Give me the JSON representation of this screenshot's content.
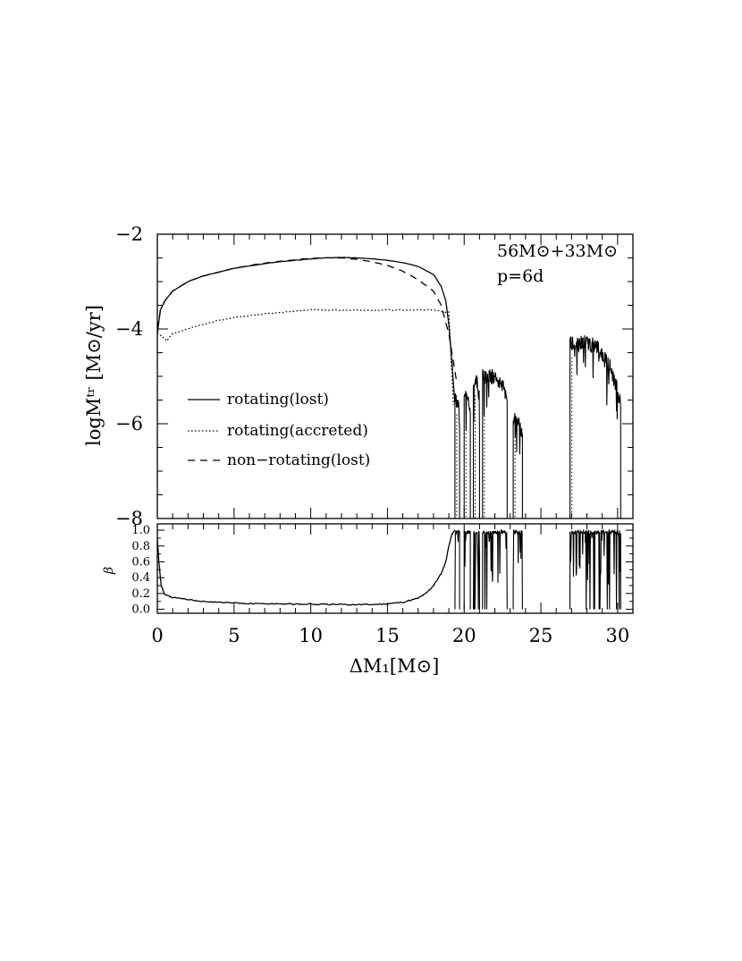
{
  "chart_data": [
    {
      "type": "line",
      "ylabel": "logMᵗʳ [M⊙/yr]",
      "ylim": [
        -8,
        -2
      ],
      "yticks": [
        -2,
        -4,
        -6,
        -8
      ],
      "xlim": [
        0,
        31
      ],
      "annotations": [
        "56M⊙+33M⊙",
        "p=6d"
      ],
      "legend": {
        "placement": "center-left",
        "entries": [
          "rotating(lost)",
          "rotating(accreted)",
          "non−rotating(lost)"
        ]
      },
      "series": [
        {
          "name": "rotating(lost)",
          "style": "solid",
          "x": [
            0,
            0.2,
            0.5,
            1,
            2,
            3,
            4,
            5,
            6,
            7,
            8,
            9,
            10,
            11,
            12,
            13,
            14,
            15,
            16,
            17,
            18,
            18.5,
            18.8,
            19.0,
            19.2,
            19.4
          ],
          "y": [
            -4.1,
            -3.6,
            -3.4,
            -3.2,
            -3.0,
            -2.88,
            -2.8,
            -2.72,
            -2.67,
            -2.62,
            -2.58,
            -2.55,
            -2.52,
            -2.5,
            -2.49,
            -2.5,
            -2.52,
            -2.55,
            -2.6,
            -2.68,
            -2.85,
            -3.1,
            -3.4,
            -3.9,
            -4.7,
            -5.6
          ]
        },
        {
          "name": "rotating(accreted)",
          "style": "dotted",
          "x": [
            0,
            0.3,
            0.6,
            1,
            2,
            3,
            4,
            5,
            6,
            7,
            8,
            9,
            10,
            11,
            12,
            13,
            14,
            15,
            16,
            17,
            18,
            19.0,
            19.3
          ],
          "y": [
            -4.1,
            -4.15,
            -4.25,
            -4.1,
            -4.0,
            -3.9,
            -3.82,
            -3.76,
            -3.72,
            -3.68,
            -3.65,
            -3.62,
            -3.6,
            -3.6,
            -3.6,
            -3.6,
            -3.6,
            -3.6,
            -3.6,
            -3.6,
            -3.6,
            -3.65,
            -5.6
          ]
        },
        {
          "name": "non−rotating(lost)",
          "style": "dashed",
          "x": [
            0,
            0.2,
            0.5,
            1,
            2,
            3,
            4,
            5,
            6,
            7,
            8,
            9,
            10,
            11,
            12,
            13,
            14,
            15,
            16,
            17,
            18,
            18.5,
            19.0,
            19.3,
            19.5
          ],
          "y": [
            -4.0,
            -3.6,
            -3.4,
            -3.2,
            -3.0,
            -2.88,
            -2.8,
            -2.72,
            -2.66,
            -2.61,
            -2.57,
            -2.54,
            -2.51,
            -2.5,
            -2.5,
            -2.53,
            -2.58,
            -2.66,
            -2.78,
            -2.96,
            -3.2,
            -3.5,
            -4.1,
            -4.7,
            -5.1
          ]
        }
      ]
    },
    {
      "type": "line",
      "ylabel": "β",
      "xlabel": "ΔM₁[M⊙]",
      "ylim": [
        -0.05,
        1.08
      ],
      "yticks": [
        0.0,
        0.2,
        0.4,
        0.6,
        0.8,
        1.0
      ],
      "ytick_labels": [
        "0.0",
        "0.2",
        "0.4",
        "0.6",
        "0.8",
        "1.0"
      ],
      "xlim": [
        0,
        31
      ],
      "xticks": [
        0,
        5,
        10,
        15,
        20,
        25,
        30
      ],
      "xtick_labels": [
        "0",
        "5",
        "10",
        "15",
        "20",
        "25",
        "30"
      ],
      "series": [
        {
          "style": "solid",
          "x": [
            0,
            0.1,
            0.25,
            0.5,
            1,
            2,
            3,
            4,
            5,
            6,
            7,
            8,
            9,
            10,
            11,
            12,
            13,
            14,
            15,
            16,
            17,
            17.5,
            18,
            18.5,
            18.8,
            19.0,
            19.2,
            19.4
          ],
          "y": [
            0.9,
            0.6,
            0.3,
            0.18,
            0.15,
            0.12,
            0.1,
            0.09,
            0.08,
            0.07,
            0.07,
            0.07,
            0.065,
            0.065,
            0.06,
            0.06,
            0.06,
            0.06,
            0.07,
            0.09,
            0.14,
            0.2,
            0.3,
            0.45,
            0.6,
            0.8,
            0.95,
            1.0
          ]
        }
      ]
    }
  ],
  "active_segments": {
    "x": [
      [
        19.4,
        19.7
      ],
      [
        20.0,
        20.4
      ],
      [
        20.6,
        21.0
      ],
      [
        21.2,
        22.8
      ],
      [
        23.2,
        23.8
      ],
      [
        26.9,
        30.2
      ]
    ],
    "top_logMtr": [
      -5.5,
      -5.3,
      -5.1,
      -5.0,
      -5.9,
      -4.3
    ]
  }
}
